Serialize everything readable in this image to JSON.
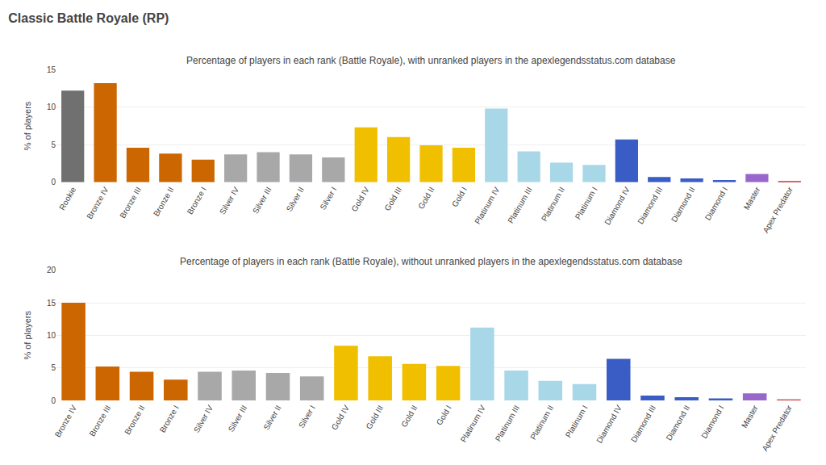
{
  "title": "Classic Battle Royale (RP)",
  "chart_data": [
    {
      "type": "bar",
      "title": "Percentage of players in each rank (Battle Royale), with unranked players in the apexlegendsstatus.com database",
      "categories": [
        "Rookie",
        "Bronze IV",
        "Bronze III",
        "Bronze II",
        "Bronze I",
        "Silver IV",
        "Silver III",
        "Silver II",
        "Silver I",
        "Gold IV",
        "Gold III",
        "Gold II",
        "Gold I",
        "Platinum IV",
        "Platinum III",
        "Platinum II",
        "Platinum I",
        "Diamond IV",
        "Diamond III",
        "Diamond II",
        "Diamond I",
        "Master",
        "Apex Predator"
      ],
      "values": [
        12.2,
        13.2,
        4.6,
        3.8,
        3.0,
        3.7,
        4.0,
        3.7,
        3.3,
        7.3,
        6.0,
        4.9,
        4.6,
        9.8,
        4.1,
        2.6,
        2.3,
        5.7,
        0.7,
        0.5,
        0.3,
        1.1,
        0.15
      ],
      "colors": [
        "#707070",
        "#cc6600",
        "#cc6600",
        "#cc6600",
        "#cc6600",
        "#a8a8a8",
        "#a8a8a8",
        "#a8a8a8",
        "#a8a8a8",
        "#f0c000",
        "#f0c000",
        "#f0c000",
        "#f0c000",
        "#a8d8e8",
        "#a8d8e8",
        "#a8d8e8",
        "#a8d8e8",
        "#3a5cc5",
        "#3a5cc5",
        "#3a5cc5",
        "#3a5cc5",
        "#9966cc",
        "#cc3333"
      ],
      "ylabel": "% of players",
      "ylim": [
        0,
        15
      ],
      "yticks": [
        0,
        5,
        10,
        15
      ],
      "grid": true
    },
    {
      "type": "bar",
      "title": "Percentage of players in each rank (Battle Royale), without unranked players in the apexlegendsstatus.com database",
      "categories": [
        "Bronze IV",
        "Bronze III",
        "Bronze II",
        "Bronze I",
        "Silver IV",
        "Silver III",
        "Silver II",
        "Silver I",
        "Gold IV",
        "Gold III",
        "Gold II",
        "Gold I",
        "Platinum IV",
        "Platinum III",
        "Platinum II",
        "Platinum I",
        "Diamond IV",
        "Diamond III",
        "Diamond II",
        "Diamond I",
        "Master",
        "Apex Predator"
      ],
      "values": [
        15.0,
        5.2,
        4.4,
        3.2,
        4.4,
        4.6,
        4.2,
        3.7,
        8.4,
        6.8,
        5.6,
        5.3,
        11.2,
        4.6,
        3.0,
        2.5,
        6.4,
        0.75,
        0.5,
        0.3,
        1.1,
        0.15
      ],
      "colors": [
        "#cc6600",
        "#cc6600",
        "#cc6600",
        "#cc6600",
        "#a8a8a8",
        "#a8a8a8",
        "#a8a8a8",
        "#a8a8a8",
        "#f0c000",
        "#f0c000",
        "#f0c000",
        "#f0c000",
        "#a8d8e8",
        "#a8d8e8",
        "#a8d8e8",
        "#a8d8e8",
        "#3a5cc5",
        "#3a5cc5",
        "#3a5cc5",
        "#3a5cc5",
        "#9966cc",
        "#cc3333"
      ],
      "ylabel": "% of players",
      "ylim": [
        0,
        20
      ],
      "yticks": [
        0,
        5,
        10,
        15,
        20
      ],
      "grid": true
    }
  ]
}
